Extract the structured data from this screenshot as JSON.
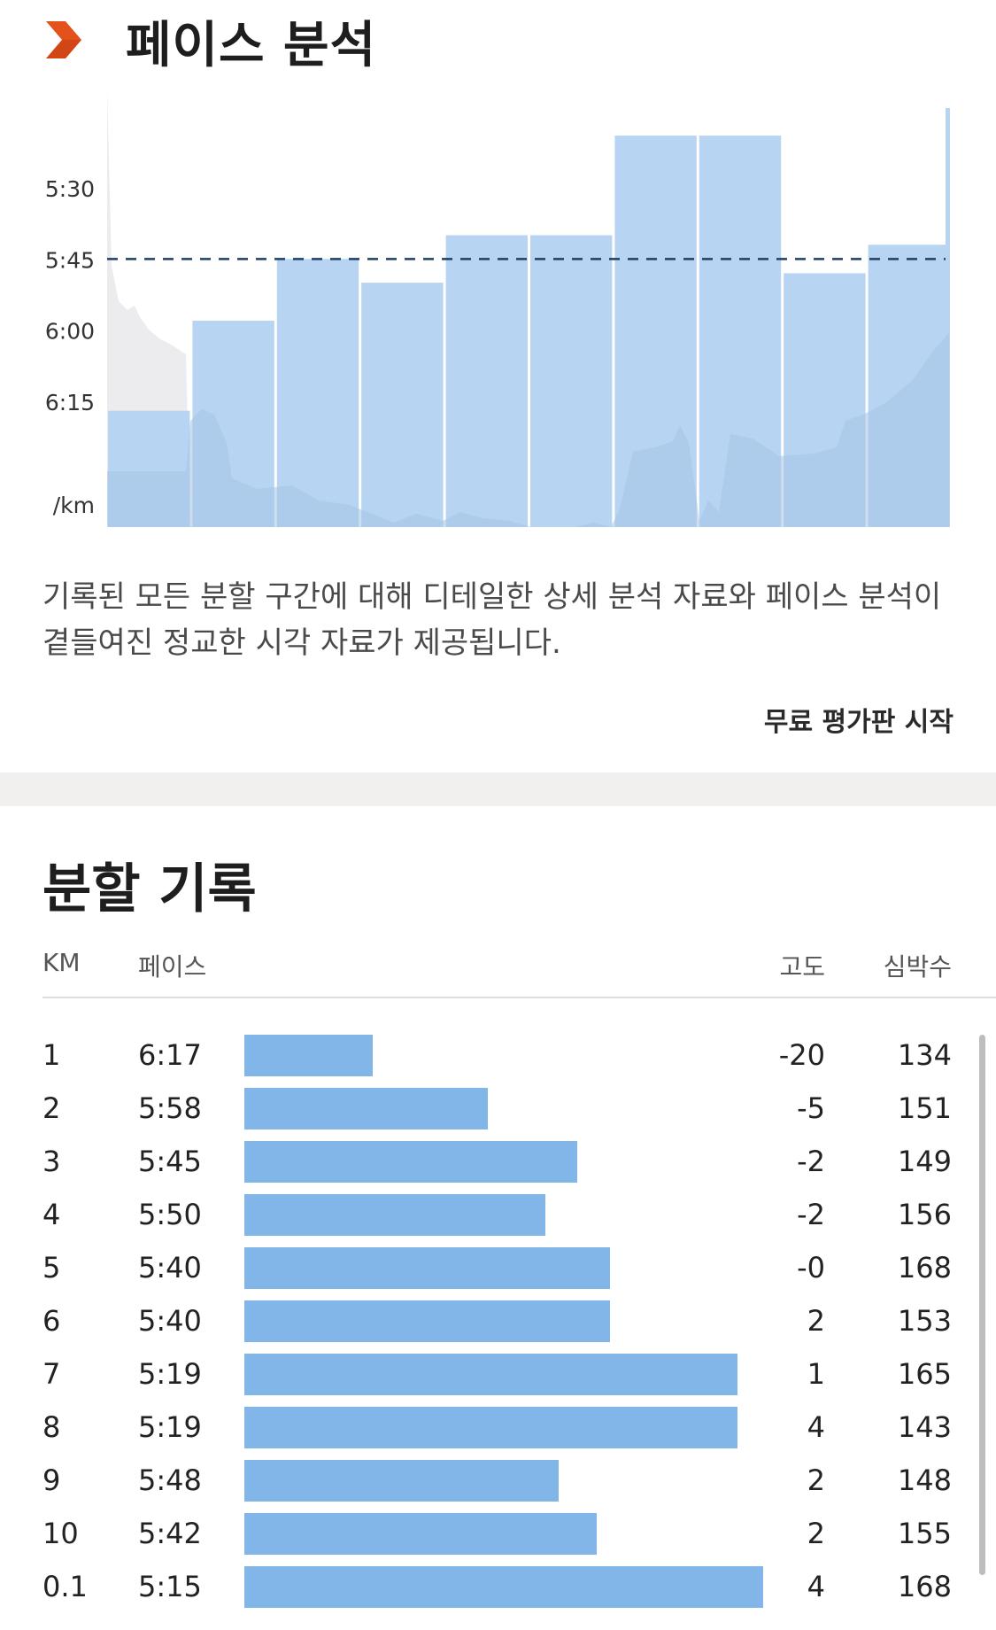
{
  "header": {
    "title": "페이스 분석",
    "icon": "chevron-right-icon",
    "icon_color": "#e4521b"
  },
  "chart_data": {
    "type": "bar",
    "y_ticks": [
      "5:30",
      "5:45",
      "6:00",
      "6:15"
    ],
    "y_unit": "/km",
    "y_inverted": true,
    "ylim_pace_seconds": [
      315,
      380
    ],
    "average_pace": "5:45",
    "categories": [
      "1",
      "2",
      "3",
      "4",
      "5",
      "6",
      "7",
      "8",
      "9",
      "10"
    ],
    "values": [
      "6:17",
      "5:58",
      "5:45",
      "5:50",
      "5:40",
      "5:40",
      "5:19",
      "5:19",
      "5:48",
      "5:42"
    ],
    "bar_color": "#b7d4f3",
    "elevation_area_color": "#ecebee",
    "heart_area_color": "#a6c2e2"
  },
  "description": "기록된 모든 분할 구간에 대해 디테일한 상세 분석 자료와 페이스 분석이 곁들여진 정교한 시각 자료가 제공됩니다.",
  "trial_button": "무료 평가판 시작",
  "splits": {
    "title": "분할 기록",
    "headers": {
      "km": "KM",
      "pace": "페이스",
      "elev": "고도",
      "hr": "심박수"
    },
    "bar_color": "#83b6e8",
    "rows": [
      {
        "km": "1",
        "pace": "6:17",
        "elev": "-20",
        "hr": "134",
        "bar": 0.2
      },
      {
        "km": "2",
        "pace": "5:58",
        "elev": "-5",
        "hr": "151",
        "bar": 0.38
      },
      {
        "km": "3",
        "pace": "5:45",
        "elev": "-2",
        "hr": "149",
        "bar": 0.52
      },
      {
        "km": "4",
        "pace": "5:50",
        "elev": "-2",
        "hr": "156",
        "bar": 0.47
      },
      {
        "km": "5",
        "pace": "5:40",
        "elev": "-0",
        "hr": "168",
        "bar": 0.57
      },
      {
        "km": "6",
        "pace": "5:40",
        "elev": "2",
        "hr": "153",
        "bar": 0.57
      },
      {
        "km": "7",
        "pace": "5:19",
        "elev": "1",
        "hr": "165",
        "bar": 0.77
      },
      {
        "km": "8",
        "pace": "5:19",
        "elev": "4",
        "hr": "143",
        "bar": 0.77
      },
      {
        "km": "9",
        "pace": "5:48",
        "elev": "2",
        "hr": "148",
        "bar": 0.49
      },
      {
        "km": "10",
        "pace": "5:42",
        "elev": "2",
        "hr": "155",
        "bar": 0.55
      },
      {
        "km": "0.1",
        "pace": "5:15",
        "elev": "4",
        "hr": "168",
        "bar": 0.81
      }
    ]
  }
}
